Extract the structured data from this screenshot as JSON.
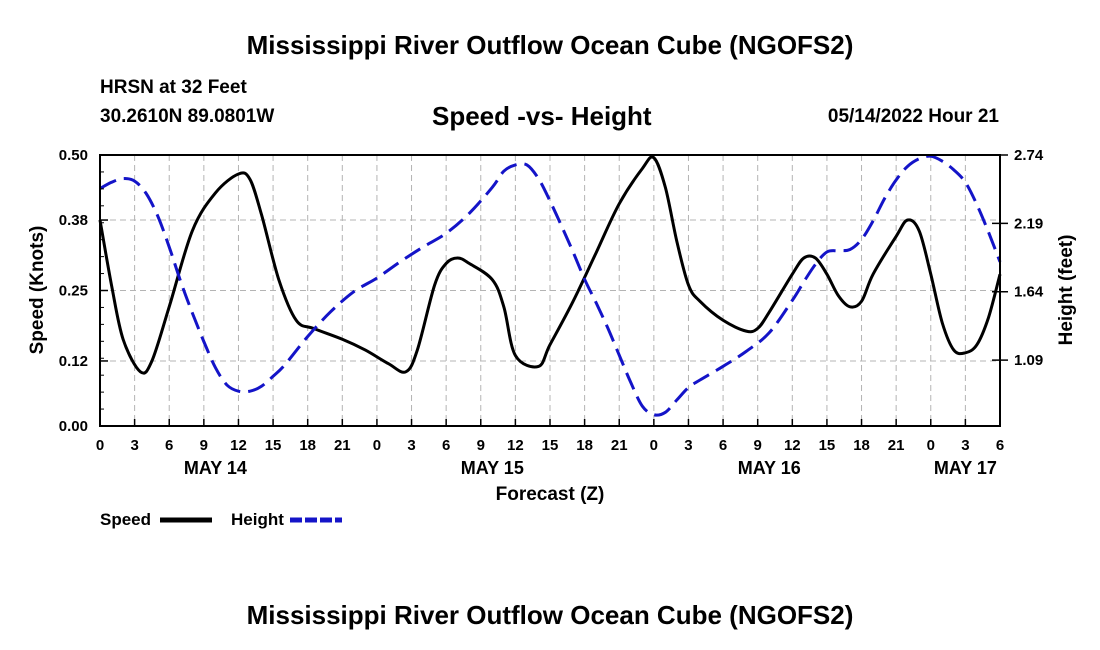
{
  "header": {
    "main_title": "Mississippi River Outflow Ocean Cube (NGOFS2)",
    "station": "HRSN at 32 Feet",
    "coords": "30.2610N  89.0801W",
    "subtitle": "Speed -vs- Height",
    "datetime": "05/14/2022 Hour 21"
  },
  "footer": {
    "title": "Mississippi River Outflow Ocean Cube (NGOFS2)"
  },
  "chart_data": {
    "type": "line",
    "title": "Speed -vs- Height",
    "xlabel": "Forecast (Z)",
    "ylabel": "Speed (Knots)",
    "y2label": "Height (feet)",
    "x_unit": "hours since 05/14 00Z",
    "xlim": [
      0,
      78
    ],
    "ylim": [
      0,
      0.5
    ],
    "y2lim": [
      0.56,
      2.74
    ],
    "y_ticks": [
      "0.00",
      "0.12",
      "0.25",
      "0.38",
      "0.50"
    ],
    "y2_ticks": [
      "1.09",
      "1.64",
      "2.19",
      "2.74"
    ],
    "x_ticks": [
      {
        "hour": 0,
        "label": "0"
      },
      {
        "hour": 3,
        "label": "3"
      },
      {
        "hour": 6,
        "label": "6"
      },
      {
        "hour": 9,
        "label": "9"
      },
      {
        "hour": 12,
        "label": "12"
      },
      {
        "hour": 15,
        "label": "15"
      },
      {
        "hour": 18,
        "label": "18"
      },
      {
        "hour": 21,
        "label": "21"
      },
      {
        "hour": 24,
        "label": "0"
      },
      {
        "hour": 27,
        "label": "3"
      },
      {
        "hour": 30,
        "label": "6"
      },
      {
        "hour": 33,
        "label": "9"
      },
      {
        "hour": 36,
        "label": "12"
      },
      {
        "hour": 39,
        "label": "15"
      },
      {
        "hour": 42,
        "label": "18"
      },
      {
        "hour": 45,
        "label": "21"
      },
      {
        "hour": 48,
        "label": "0"
      },
      {
        "hour": 51,
        "label": "3"
      },
      {
        "hour": 54,
        "label": "6"
      },
      {
        "hour": 57,
        "label": "9"
      },
      {
        "hour": 60,
        "label": "12"
      },
      {
        "hour": 63,
        "label": "15"
      },
      {
        "hour": 66,
        "label": "18"
      },
      {
        "hour": 69,
        "label": "21"
      },
      {
        "hour": 72,
        "label": "0"
      },
      {
        "hour": 75,
        "label": "3"
      },
      {
        "hour": 78,
        "label": "6"
      }
    ],
    "day_labels": [
      {
        "hour": 10,
        "label": "MAY 14"
      },
      {
        "hour": 34,
        "label": "MAY 15"
      },
      {
        "hour": 58,
        "label": "MAY 16"
      },
      {
        "hour": 75,
        "label": "MAY 17"
      }
    ],
    "grid": true,
    "legend_position": "bottom-left",
    "series": [
      {
        "name": "Speed",
        "axis": "left",
        "color": "#000000",
        "style": "solid",
        "points": [
          [
            0,
            0.38
          ],
          [
            1,
            0.26
          ],
          [
            2,
            0.16
          ],
          [
            3.5,
            0.1
          ],
          [
            4.5,
            0.12
          ],
          [
            6,
            0.22
          ],
          [
            8,
            0.36
          ],
          [
            10,
            0.43
          ],
          [
            12,
            0.465
          ],
          [
            13,
            0.455
          ],
          [
            14,
            0.39
          ],
          [
            15.5,
            0.27
          ],
          [
            17,
            0.195
          ],
          [
            18.5,
            0.18
          ],
          [
            21,
            0.16
          ],
          [
            23,
            0.14
          ],
          [
            25,
            0.115
          ],
          [
            26.5,
            0.1
          ],
          [
            27.5,
            0.14
          ],
          [
            29,
            0.26
          ],
          [
            30,
            0.3
          ],
          [
            31,
            0.31
          ],
          [
            32,
            0.3
          ],
          [
            34,
            0.27
          ],
          [
            35,
            0.22
          ],
          [
            36,
            0.13
          ],
          [
            38,
            0.11
          ],
          [
            39,
            0.15
          ],
          [
            41,
            0.23
          ],
          [
            43,
            0.32
          ],
          [
            45,
            0.41
          ],
          [
            47,
            0.475
          ],
          [
            48,
            0.495
          ],
          [
            49,
            0.44
          ],
          [
            50,
            0.34
          ],
          [
            51,
            0.26
          ],
          [
            52,
            0.23
          ],
          [
            54,
            0.195
          ],
          [
            56,
            0.175
          ],
          [
            57,
            0.18
          ],
          [
            58,
            0.21
          ],
          [
            60,
            0.28
          ],
          [
            61,
            0.31
          ],
          [
            62,
            0.31
          ],
          [
            63,
            0.28
          ],
          [
            64,
            0.24
          ],
          [
            65,
            0.22
          ],
          [
            66,
            0.23
          ],
          [
            67,
            0.28
          ],
          [
            69,
            0.35
          ],
          [
            70,
            0.38
          ],
          [
            71,
            0.36
          ],
          [
            72,
            0.28
          ],
          [
            73,
            0.19
          ],
          [
            74,
            0.14
          ],
          [
            75,
            0.135
          ],
          [
            76,
            0.15
          ],
          [
            77,
            0.2
          ],
          [
            78,
            0.28
          ]
        ]
      },
      {
        "name": "Height",
        "axis": "right",
        "color": "#1414c8",
        "style": "dashed",
        "points": [
          [
            0,
            2.47
          ],
          [
            1,
            2.52
          ],
          [
            2,
            2.55
          ],
          [
            3,
            2.53
          ],
          [
            4,
            2.43
          ],
          [
            5,
            2.25
          ],
          [
            6,
            2.0
          ],
          [
            7,
            1.72
          ],
          [
            8,
            1.47
          ],
          [
            9,
            1.24
          ],
          [
            10,
            1.03
          ],
          [
            11,
            0.89
          ],
          [
            12,
            0.84
          ],
          [
            13,
            0.84
          ],
          [
            14,
            0.88
          ],
          [
            15,
            0.96
          ],
          [
            16,
            1.05
          ],
          [
            18,
            1.28
          ],
          [
            20,
            1.48
          ],
          [
            22,
            1.64
          ],
          [
            24,
            1.75
          ],
          [
            26,
            1.88
          ],
          [
            28,
            2.0
          ],
          [
            30,
            2.11
          ],
          [
            32,
            2.27
          ],
          [
            34,
            2.48
          ],
          [
            35,
            2.61
          ],
          [
            36,
            2.66
          ],
          [
            37,
            2.66
          ],
          [
            38,
            2.55
          ],
          [
            39,
            2.37
          ],
          [
            40,
            2.17
          ],
          [
            41,
            1.96
          ],
          [
            42,
            1.74
          ],
          [
            43,
            1.55
          ],
          [
            44,
            1.35
          ],
          [
            45,
            1.13
          ],
          [
            46,
            0.91
          ],
          [
            47,
            0.72
          ],
          [
            48,
            0.65
          ],
          [
            49,
            0.67
          ],
          [
            50,
            0.77
          ],
          [
            51,
            0.87
          ],
          [
            52,
            0.93
          ],
          [
            54,
            1.04
          ],
          [
            56,
            1.16
          ],
          [
            58,
            1.31
          ],
          [
            60,
            1.57
          ],
          [
            61,
            1.72
          ],
          [
            62,
            1.86
          ],
          [
            63,
            1.96
          ],
          [
            64,
            1.97
          ],
          [
            65,
            1.98
          ],
          [
            66,
            2.06
          ],
          [
            67,
            2.21
          ],
          [
            68,
            2.39
          ],
          [
            69,
            2.54
          ],
          [
            70,
            2.65
          ],
          [
            71,
            2.71
          ],
          [
            72,
            2.73
          ],
          [
            73,
            2.69
          ],
          [
            74,
            2.62
          ],
          [
            75,
            2.52
          ],
          [
            76,
            2.34
          ],
          [
            77,
            2.12
          ],
          [
            78,
            1.88
          ]
        ]
      }
    ]
  },
  "legend": {
    "items": [
      {
        "label": "Speed",
        "color": "#000000"
      },
      {
        "label": "Height",
        "color": "#1414c8"
      }
    ]
  }
}
